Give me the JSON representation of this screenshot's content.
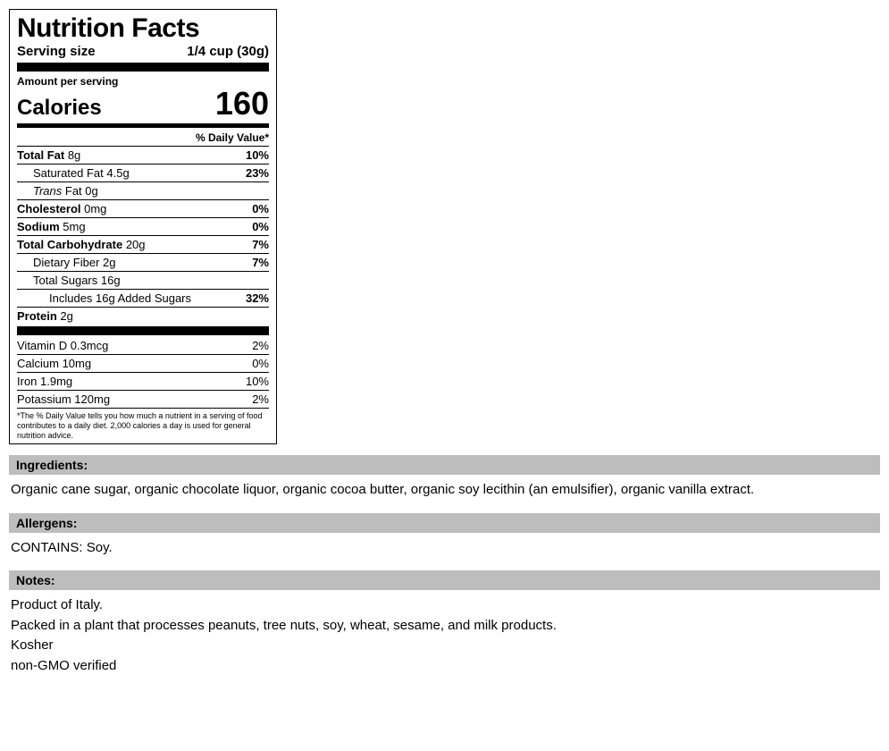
{
  "label": {
    "title": "Nutrition Facts",
    "serving_label": "Serving size",
    "serving_value": "1/4 cup (30g)",
    "amount_per_serving": "Amount per serving",
    "calories_label": "Calories",
    "calories_value": "160",
    "dv_header": "% Daily Value*",
    "rows_main": [
      {
        "label_html": "<b>Total Fat</b> 8g",
        "pct": "10%",
        "indent": 0
      },
      {
        "label_html": "Saturated Fat 4.5g",
        "pct": "23%",
        "indent": 1
      },
      {
        "label_html": "<i>Trans</i> Fat 0g",
        "pct": "",
        "indent": 1
      },
      {
        "label_html": "<b>Cholesterol</b> 0mg",
        "pct": "0%",
        "indent": 0
      },
      {
        "label_html": "<b>Sodium</b> 5mg",
        "pct": "0%",
        "indent": 0
      },
      {
        "label_html": "<b>Total Carbohydrate</b> 20g",
        "pct": "7%",
        "indent": 0
      },
      {
        "label_html": "Dietary Fiber 2g",
        "pct": "7%",
        "indent": 1
      },
      {
        "label_html": "Total Sugars 16g",
        "pct": "",
        "indent": 1
      },
      {
        "label_html": "Includes 16g Added Sugars",
        "pct": "32%",
        "indent": 2
      },
      {
        "label_html": "<b>Protein</b> 2g",
        "pct": "",
        "indent": 0
      }
    ],
    "rows_vitamins": [
      {
        "label_html": "Vitamin D 0.3mcg",
        "pct": "2%"
      },
      {
        "label_html": "Calcium 10mg",
        "pct": "0%"
      },
      {
        "label_html": "Iron 1.9mg",
        "pct": "10%"
      },
      {
        "label_html": "Potassium 120mg",
        "pct": "2%"
      }
    ],
    "footnote": "*The % Daily Value tells you how much a nutrient in a serving of food contributes to a daily diet. 2,000 calories a day is used for general nutrition advice."
  },
  "sections": {
    "ingredients_title": "Ingredients:",
    "ingredients_body": "Organic cane sugar, organic chocolate liquor, organic cocoa butter, organic soy lecithin (an emulsifier), organic vanilla extract.",
    "allergens_title": "Allergens:",
    "allergens_body": "CONTAINS: Soy.",
    "notes_title": "Notes:",
    "notes_lines": [
      "Product of Italy.",
      "Packed in a plant that processes peanuts, tree nuts, soy, wheat, sesame, and milk products.",
      "Kosher",
      "non-GMO verified"
    ]
  },
  "colors": {
    "section_bar_bg": "#bdbdbd",
    "text": "#000000",
    "background": "#ffffff"
  }
}
